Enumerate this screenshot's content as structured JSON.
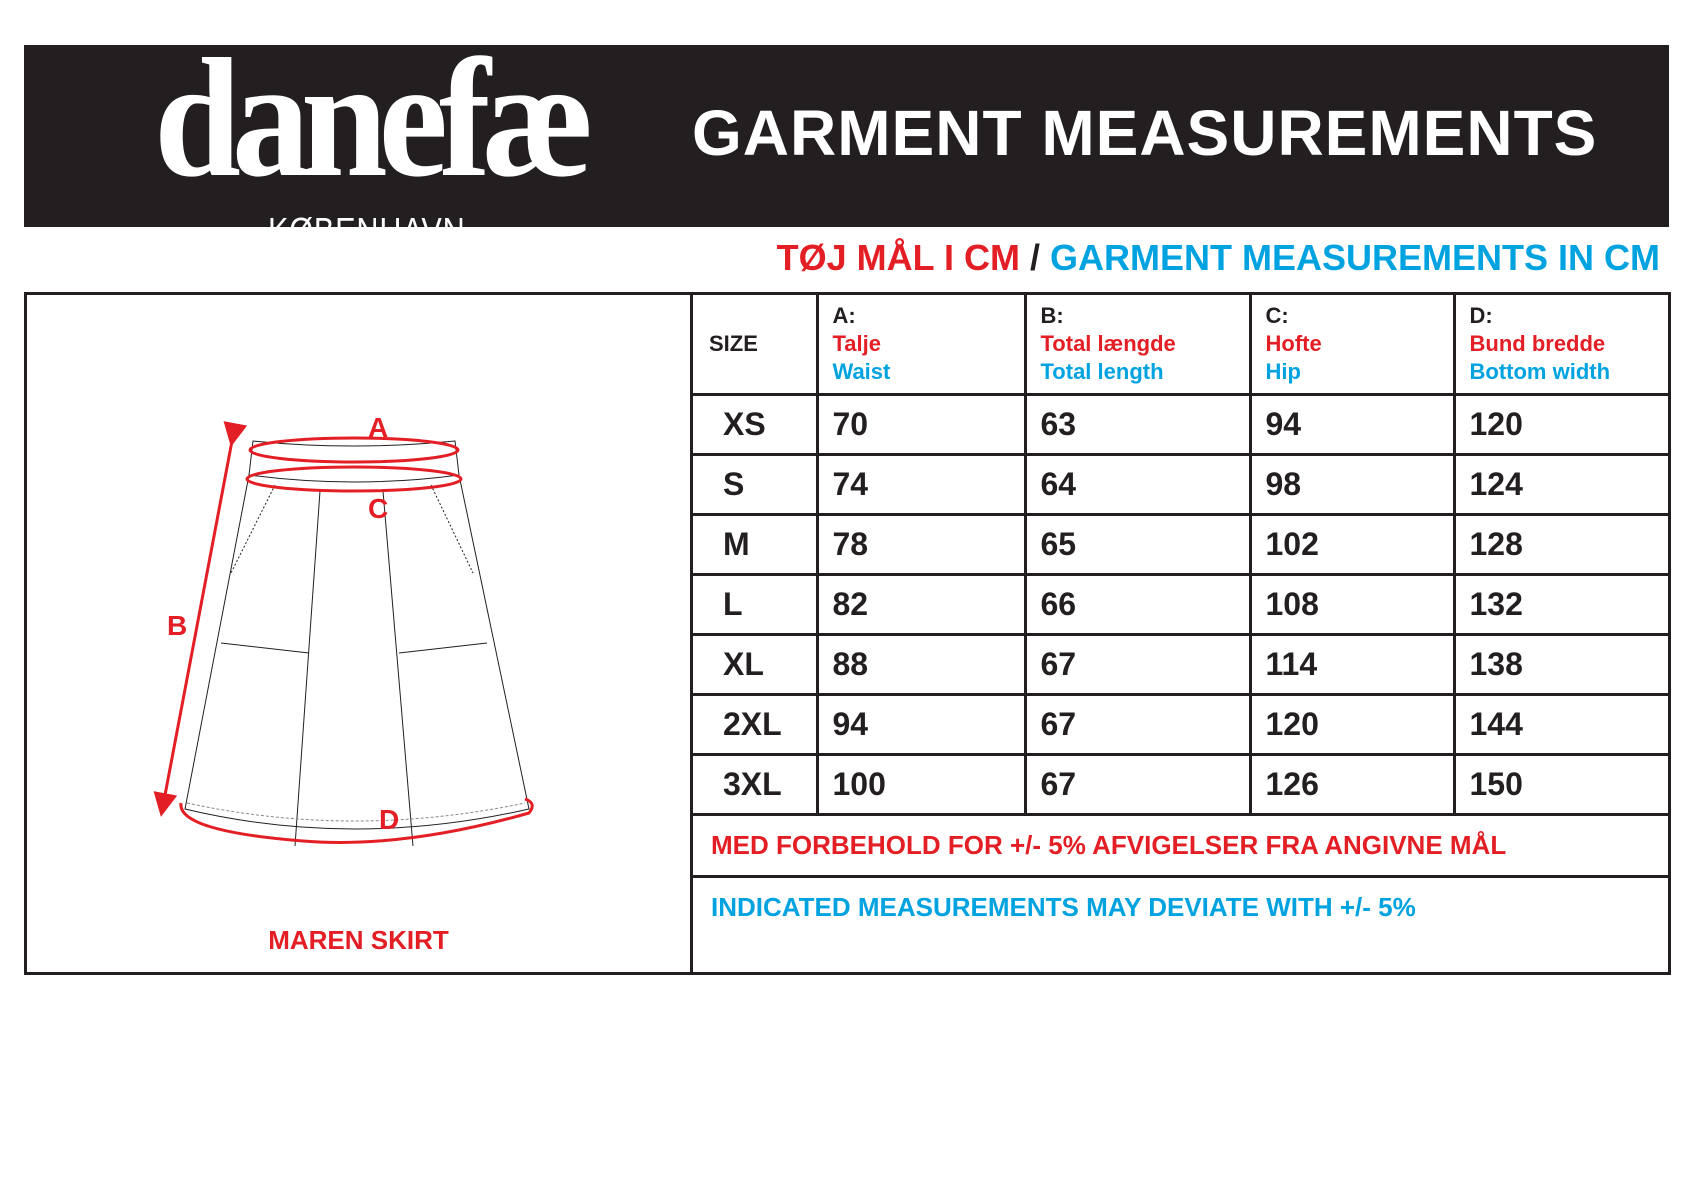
{
  "brand": {
    "name": "danefæ",
    "city": "KØBENHAVN"
  },
  "header": {
    "title": "GARMENT MEASUREMENTS"
  },
  "subtitle": {
    "danish": "TØJ MÅL I CM",
    "separator": "/",
    "english": "GARMENT MEASUREMENTS IN CM"
  },
  "product": {
    "name": "MAREN SKIRT",
    "markers": [
      "A",
      "B",
      "C",
      "D"
    ]
  },
  "table": {
    "size_header": "SIZE",
    "columns": [
      {
        "letter": "A:",
        "danish": "Talje",
        "english": "Waist"
      },
      {
        "letter": "B:",
        "danish": "Total længde",
        "english": "Total length"
      },
      {
        "letter": "C:",
        "danish": "Hofte",
        "english": "Hip"
      },
      {
        "letter": "D:",
        "danish": "Bund bredde",
        "english": "Bottom width"
      }
    ],
    "rows": [
      {
        "size": "XS",
        "values": [
          "70",
          "63",
          "94",
          "120"
        ]
      },
      {
        "size": "S",
        "values": [
          "74",
          "64",
          "98",
          "124"
        ]
      },
      {
        "size": "M",
        "values": [
          "78",
          "65",
          "102",
          "128"
        ]
      },
      {
        "size": "L",
        "values": [
          "82",
          "66",
          "108",
          "132"
        ]
      },
      {
        "size": "XL",
        "values": [
          "88",
          "67",
          "114",
          "138"
        ]
      },
      {
        "size": "2XL",
        "values": [
          "94",
          "67",
          "120",
          "144"
        ]
      },
      {
        "size": "3XL",
        "values": [
          "100",
          "67",
          "126",
          "150"
        ]
      }
    ],
    "note_danish": "MED FORBEHOLD FOR +/- 5% AFVIGELSER FRA ANGIVNE MÅL",
    "note_english": "INDICATED MEASUREMENTS MAY DEVIATE WITH +/- 5%"
  },
  "colors": {
    "red": "#e31e24",
    "blue": "#00a3e0",
    "dark": "#231f20"
  }
}
